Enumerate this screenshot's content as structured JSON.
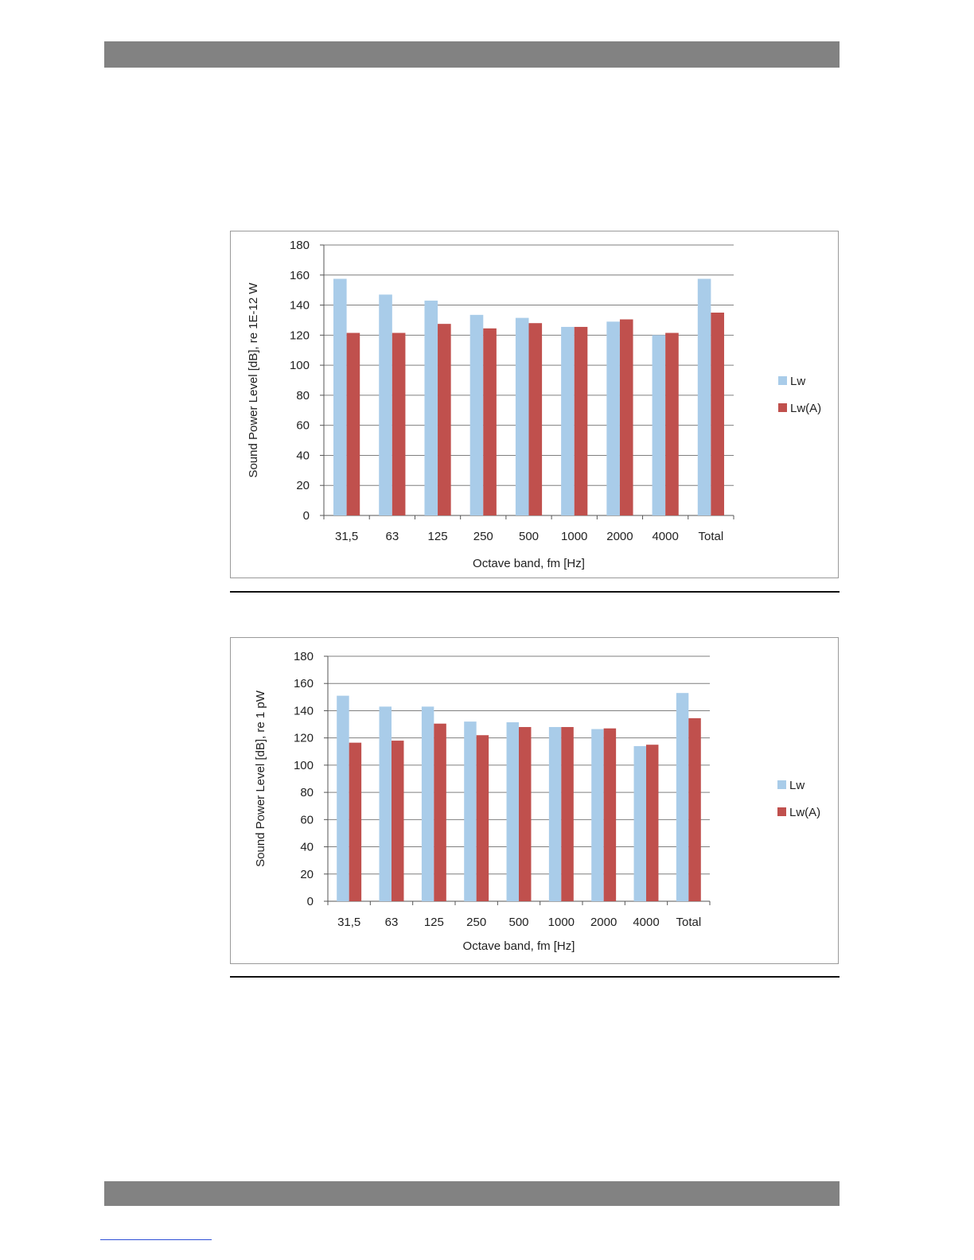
{
  "colors": {
    "header_bar": "#828282",
    "series_lw": "#a9cce9",
    "series_lwa": "#c0504d",
    "grid": "#7f7f7f"
  },
  "chart_data": [
    {
      "type": "bar",
      "categories": [
        "31,5",
        "63",
        "125",
        "250",
        "500",
        "1000",
        "2000",
        "4000",
        "Total"
      ],
      "series": [
        {
          "name": "Lw",
          "color": "#a9cce9",
          "values": [
            157.5,
            147,
            143,
            133.5,
            131.5,
            125.5,
            129,
            120,
            157.5
          ]
        },
        {
          "name": "Lw(A)",
          "color": "#c0504d",
          "values": [
            121.5,
            121.5,
            127.5,
            124.5,
            128,
            125.5,
            130.5,
            121.5,
            135
          ]
        }
      ],
      "title": "",
      "xlabel": "Octave band, fm [Hz]",
      "ylabel": "Sound Power Level [dB], re 1E-12 W",
      "ylim": [
        0,
        180
      ],
      "yticks": [
        "0",
        "20",
        "40",
        "60",
        "80",
        "100",
        "120",
        "140",
        "160",
        "180"
      ],
      "grid": true,
      "legend": "right"
    },
    {
      "type": "bar",
      "categories": [
        "31,5",
        "63",
        "125",
        "250",
        "500",
        "1000",
        "2000",
        "4000",
        "Total"
      ],
      "series": [
        {
          "name": "Lw",
          "color": "#a9cce9",
          "values": [
            151,
            143,
            143,
            132,
            131.5,
            128,
            126.5,
            114,
            153
          ]
        },
        {
          "name": "Lw(A)",
          "color": "#c0504d",
          "values": [
            116.5,
            118,
            130.5,
            122,
            128,
            128,
            127,
            115,
            134.5
          ]
        }
      ],
      "title": "",
      "xlabel": "Octave band, fm [Hz]",
      "ylabel": "Sound Power Level [dB], re 1 pW",
      "ylim": [
        0,
        180
      ],
      "yticks": [
        "0",
        "20",
        "40",
        "60",
        "80",
        "100",
        "120",
        "140",
        "160",
        "180"
      ],
      "grid": true,
      "legend": "right"
    }
  ]
}
